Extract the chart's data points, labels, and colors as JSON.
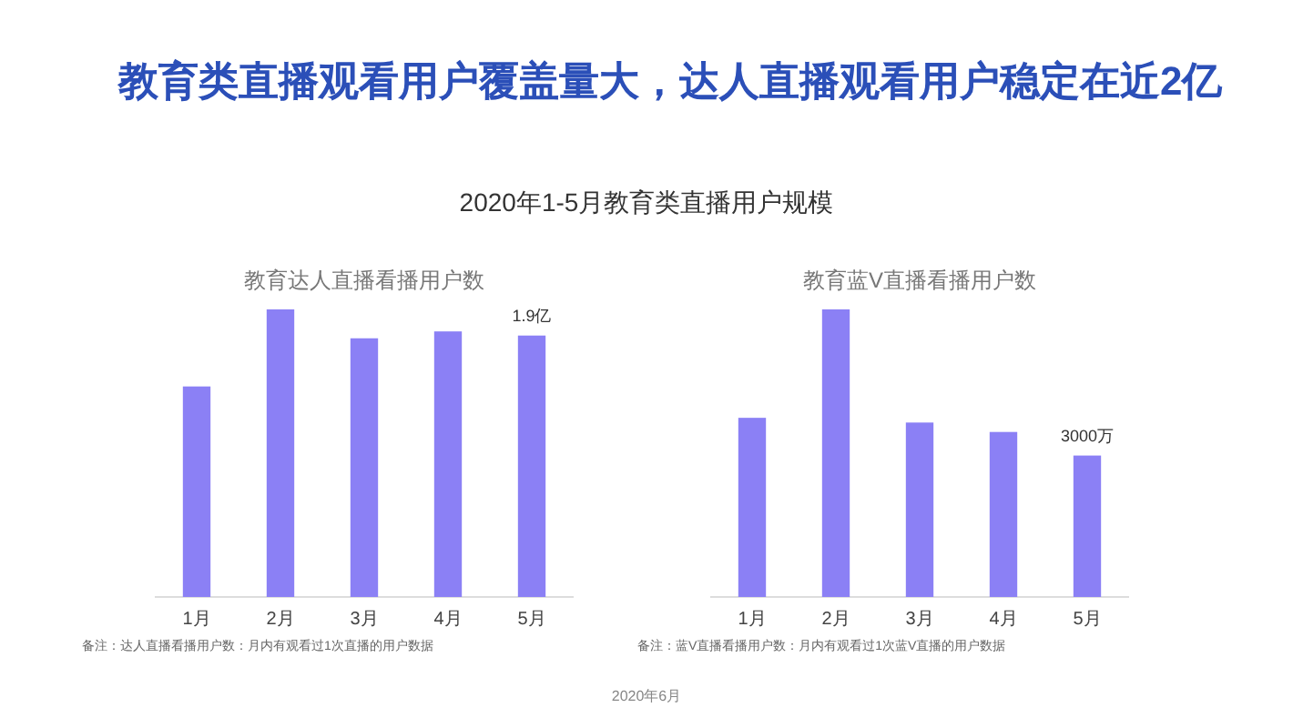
{
  "chart_data": [
    {
      "type": "other",
      "title": "教育类直播观看用户覆盖量大，达人直播观看用户稳定在近2亿",
      "subtitle": "2020年1-5月教育类直播用户规模",
      "annotations": [
        "2020年6月"
      ]
    },
    {
      "type": "bar",
      "title": "教育达人直播看播用户数",
      "categories": [
        "1月",
        "2月",
        "3月",
        "4月",
        "5月"
      ],
      "values": [
        1.53,
        2.09,
        1.88,
        1.93,
        1.9
      ],
      "value_labels": [
        null,
        null,
        null,
        null,
        "1.9亿"
      ],
      "color": "#8b80f5",
      "annotations": [
        "备注：达人直播看播用户数：月内有观看过1次直播的用户数据"
      ]
    },
    {
      "type": "bar",
      "title": "教育蓝V直播看播用户数",
      "categories": [
        "1月",
        "2月",
        "3月",
        "4月",
        "5月"
      ],
      "values": [
        3800,
        6100,
        3700,
        3500,
        3000
      ],
      "value_labels": [
        null,
        null,
        null,
        null,
        "3000万"
      ],
      "color": "#8b80f5",
      "annotations": [
        "备注：蓝V直播看播用户数：月内有观看过1次蓝V直播的用户数据"
      ]
    }
  ]
}
